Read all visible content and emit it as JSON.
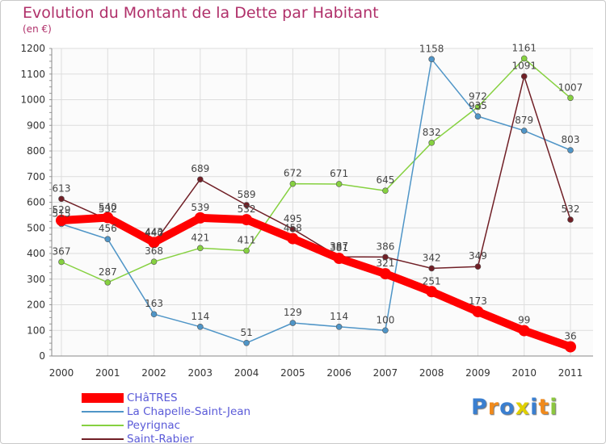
{
  "chart_data": {
    "type": "line",
    "title": "Evolution du Montant de la Dette par Habitant",
    "subtitle": "(en €)",
    "xlabel": "",
    "ylabel": "",
    "x": [
      "2000",
      "2001",
      "2002",
      "2003",
      "2004",
      "2005",
      "2006",
      "2007",
      "2008",
      "2009",
      "2010",
      "2011"
    ],
    "ylim": [
      0,
      1200
    ],
    "yticks": [
      "0",
      "100",
      "200",
      "300",
      "400",
      "500",
      "600",
      "700",
      "800",
      "900",
      "1000",
      "1100",
      "1200"
    ],
    "grid": true,
    "series": [
      {
        "name": "CHâTRES",
        "color": "#ff0000",
        "values": [
          529,
          540,
          443,
          539,
          532,
          458,
          381,
          321,
          251,
          173,
          99,
          36
        ]
      },
      {
        "name": "La Chapelle-Saint-Jean",
        "color": "#4f95c7",
        "values": [
          515,
          456,
          163,
          114,
          51,
          129,
          114,
          100,
          1158,
          935,
          879,
          803
        ]
      },
      {
        "name": "Peyrignac",
        "color": "#86d140",
        "values": [
          367,
          287,
          368,
          421,
          411,
          672,
          671,
          645,
          832,
          972,
          1161,
          1007
        ]
      },
      {
        "name": "Saint-Rabier",
        "color": "#701f26",
        "values": [
          613,
          532,
          440,
          689,
          589,
          495,
          387,
          386,
          342,
          349,
          1091,
          532
        ]
      }
    ]
  },
  "logo": {
    "text": [
      "P",
      "r",
      "o",
      "x",
      "i",
      "t",
      "i"
    ],
    "colors": [
      "#3a7fd0",
      "#f08a1c",
      "#3a7fd0",
      "#e0d000",
      "#3a7fd0",
      "#f08a1c",
      "#8cc63f"
    ]
  }
}
